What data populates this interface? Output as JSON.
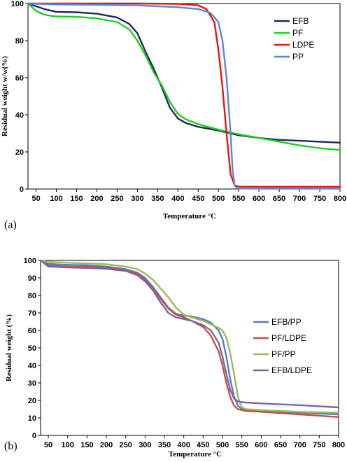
{
  "chart_data": [
    {
      "panel_label": "(a)",
      "type": "line",
      "xlabel": "Temperature °C",
      "ylabel": "Residual weight w/w(%)",
      "xlim": [
        30,
        800
      ],
      "ylim": [
        0,
        100
      ],
      "xticks": [
        50,
        100,
        150,
        200,
        250,
        300,
        350,
        400,
        450,
        500,
        550,
        600,
        650,
        700,
        750,
        800
      ],
      "yticks": [
        0,
        20,
        40,
        60,
        80,
        100
      ],
      "legend_position": "top-right",
      "series": [
        {
          "name": "EFB",
          "color": "#1f2a5a",
          "x": [
            30,
            50,
            70,
            90,
            100,
            150,
            200,
            250,
            280,
            300,
            320,
            340,
            360,
            380,
            400,
            420,
            450,
            500,
            550,
            600,
            650,
            700,
            750,
            800
          ],
          "y": [
            100,
            98.5,
            97,
            96,
            95.5,
            95.3,
            94.5,
            92.5,
            89,
            84,
            74,
            65,
            55,
            44,
            38,
            35.5,
            33.5,
            31.5,
            29,
            27.5,
            26.5,
            26,
            25.5,
            25
          ]
        },
        {
          "name": "PF",
          "color": "#22cc22",
          "x": [
            30,
            50,
            70,
            90,
            100,
            150,
            200,
            250,
            280,
            300,
            320,
            340,
            360,
            380,
            400,
            420,
            450,
            500,
            550,
            600,
            650,
            700,
            750,
            800
          ],
          "y": [
            100,
            96,
            94,
            93.2,
            93,
            92.8,
            92,
            90,
            86,
            80,
            72,
            63,
            56,
            47,
            40.5,
            37.5,
            35,
            32,
            29.5,
            27.5,
            25.5,
            23.5,
            22,
            21
          ]
        },
        {
          "name": "LDPE",
          "color": "#ee1111",
          "x": [
            30,
            100,
            200,
            300,
            400,
            450,
            470,
            490,
            500,
            510,
            520,
            530,
            540,
            550,
            600,
            700,
            800
          ],
          "y": [
            100,
            100,
            100,
            100,
            99.8,
            99,
            97,
            90,
            75,
            55,
            30,
            8,
            2,
            1.3,
            1.2,
            1.2,
            1.2
          ]
        },
        {
          "name": "PP",
          "color": "#5588dd",
          "x": [
            30,
            100,
            200,
            300,
            400,
            450,
            480,
            500,
            510,
            520,
            530,
            535,
            540,
            545,
            550,
            600,
            700,
            800
          ],
          "y": [
            100,
            99.5,
            99.3,
            99,
            98,
            97,
            95,
            90,
            80,
            60,
            30,
            10,
            2,
            0.5,
            0.3,
            0.2,
            0.2,
            0.2
          ]
        }
      ]
    },
    {
      "panel_label": "(b)",
      "type": "line",
      "xlabel": "Temperature °C",
      "ylabel": "Residual weight (%)",
      "xlim": [
        30,
        800
      ],
      "ylim": [
        0,
        100
      ],
      "xticks": [
        50,
        100,
        150,
        200,
        250,
        300,
        350,
        400,
        450,
        500,
        550,
        600,
        650,
        700,
        750,
        800
      ],
      "yticks": [
        0,
        10,
        20,
        30,
        40,
        50,
        60,
        70,
        80,
        90,
        100
      ],
      "legend_position": "right",
      "series": [
        {
          "name": "EFB/PP",
          "color": "#4f81bd",
          "x": [
            30,
            50,
            100,
            150,
            200,
            250,
            280,
            300,
            320,
            340,
            360,
            380,
            400,
            420,
            450,
            470,
            490,
            500,
            510,
            520,
            530,
            540,
            550,
            560,
            600,
            700,
            800
          ],
          "y": [
            100,
            98,
            97.5,
            97.2,
            96.5,
            95,
            93,
            90,
            85,
            79,
            73,
            69.5,
            68.5,
            68,
            66.5,
            64.5,
            60,
            55,
            45,
            32,
            22,
            17,
            15,
            14.5,
            14,
            13,
            12
          ]
        },
        {
          "name": "PF/LDPE",
          "color": "#c0504d",
          "x": [
            30,
            50,
            100,
            150,
            200,
            250,
            280,
            300,
            320,
            340,
            360,
            380,
            400,
            420,
            450,
            470,
            490,
            500,
            510,
            520,
            530,
            540,
            550,
            560,
            600,
            700,
            800
          ],
          "y": [
            100,
            97,
            96.5,
            96.3,
            95.8,
            94.5,
            92.5,
            89,
            84,
            78,
            72.5,
            69,
            67.5,
            65.5,
            62,
            57,
            48,
            40,
            30,
            22,
            17,
            15,
            14.5,
            14,
            13.5,
            12,
            10.5
          ]
        },
        {
          "name": "PF/PP",
          "color": "#9bbb59",
          "x": [
            30,
            50,
            100,
            150,
            200,
            250,
            280,
            300,
            320,
            340,
            360,
            380,
            400,
            420,
            450,
            470,
            490,
            500,
            510,
            520,
            530,
            540,
            550,
            560,
            600,
            700,
            800
          ],
          "y": [
            100,
            99.2,
            98.7,
            98.3,
            97.8,
            96.5,
            95,
            92.5,
            89,
            84,
            79,
            73,
            69,
            67.5,
            65.5,
            63.5,
            61.5,
            60,
            56,
            47,
            35,
            22,
            16,
            15,
            14.5,
            13.5,
            13
          ]
        },
        {
          "name": "EFB/LDPE",
          "color": "#8064a2",
          "x": [
            30,
            50,
            100,
            150,
            200,
            250,
            280,
            300,
            320,
            340,
            360,
            380,
            400,
            420,
            450,
            470,
            490,
            500,
            510,
            520,
            530,
            540,
            550,
            560,
            600,
            700,
            800
          ],
          "y": [
            100,
            96.5,
            96,
            95.7,
            95.2,
            94,
            91.5,
            88,
            83,
            76,
            70,
            67.5,
            66.5,
            65.5,
            63,
            60,
            53,
            45,
            35,
            26,
            21,
            19.5,
            19,
            18.8,
            18.3,
            17.3,
            16
          ]
        }
      ]
    }
  ]
}
